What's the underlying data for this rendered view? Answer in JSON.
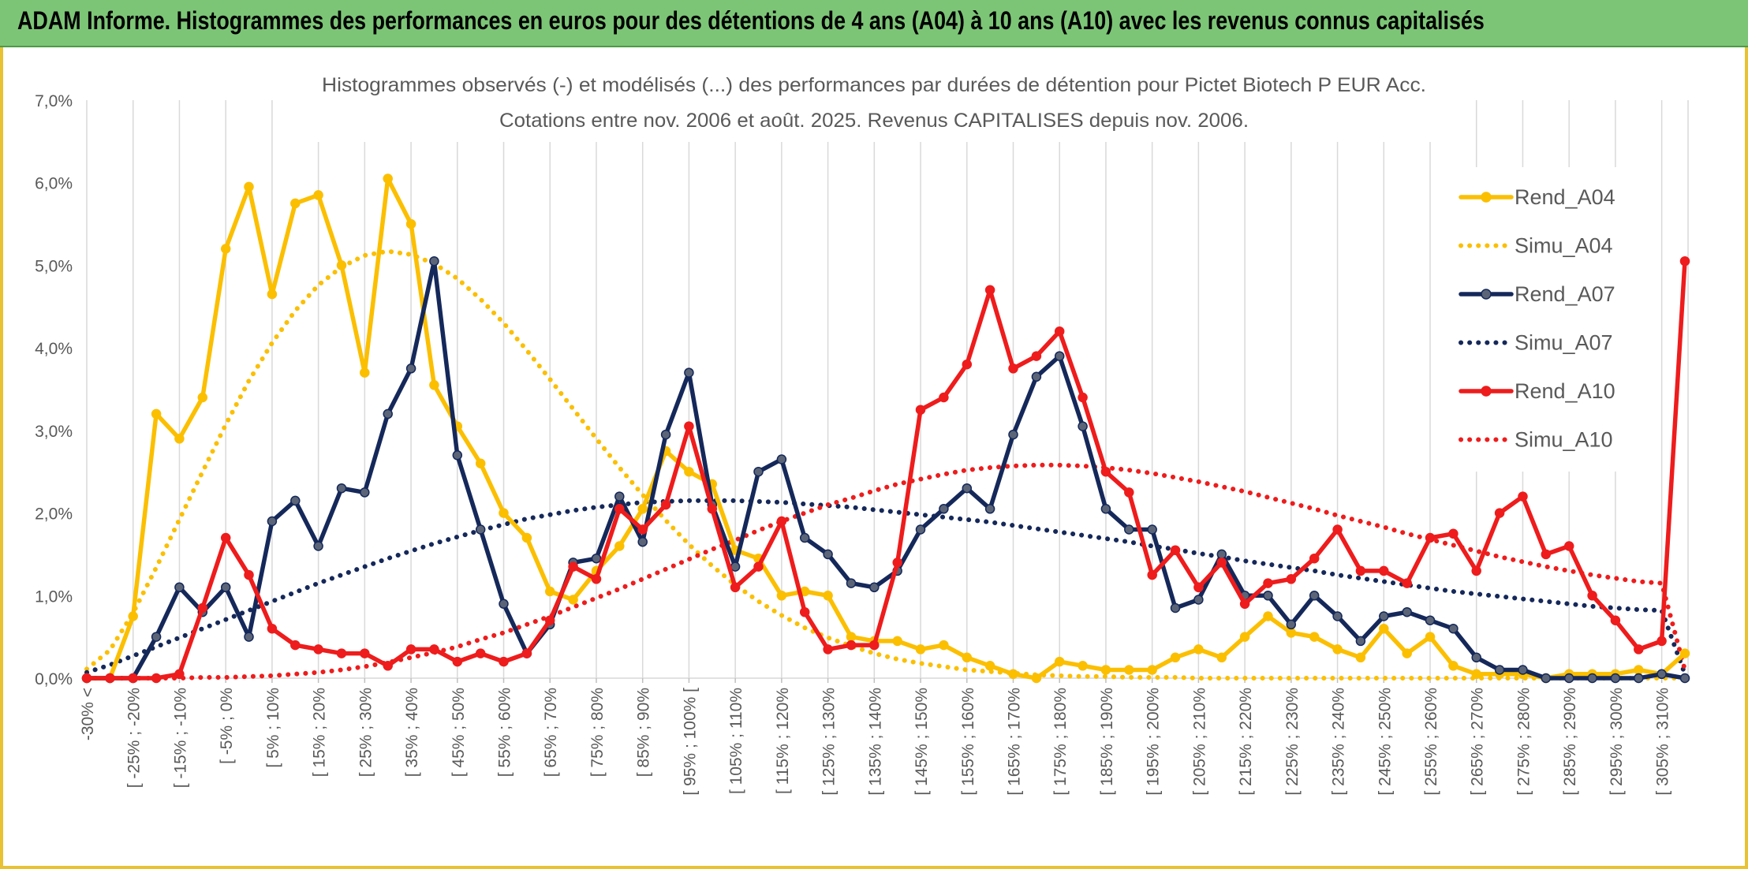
{
  "banner": {
    "title": "ADAM Informe. Histogrammes des performances en euros pour des détentions de 4 ans (A04) à 10 ans (A10) avec les revenus connus capitalisés"
  },
  "chart_data": {
    "type": "line",
    "title_line1": "Histogrammes observés (-) et modélisés (...) des performances par durées de détention pour Pictet Biotech P EUR Acc.",
    "title_line2": "Cotations entre nov. 2006 et août. 2025. Revenus CAPITALISES depuis nov. 2006.",
    "ylim": [
      0,
      7
    ],
    "yticks": [
      "0,0%",
      "1,0%",
      "2,0%",
      "3,0%",
      "4,0%",
      "5,0%",
      "6,0%",
      "7,0%"
    ],
    "grid": "vertical",
    "legend_position": "right",
    "xtick_labels": [
      "-30% <",
      "[ -25% ; -20%",
      "[ -15% ; -10%",
      "[ -5% ; 0%",
      "[ 5% ; 10%",
      "[ 15% ; 20%",
      "[ 25% ; 30%",
      "[ 35% ; 40%",
      "[ 45% ; 50%",
      "[ 55% ; 60%",
      "[ 65% ; 70%",
      "[ 75% ; 80%",
      "[ 85% ; 90%",
      "[ 95% ; 100% [",
      "[ 105% ; 110%",
      "[ 115% ; 120%",
      "[ 125% ; 130%",
      "[ 135% ; 140%",
      "[ 145% ; 150%",
      "[ 155% ; 160%",
      "[ 165% ; 170%",
      "[ 175% ; 180%",
      "[ 185% ; 190%",
      "[ 195% ; 200%",
      "[ 205% ; 210%",
      "[ 215% ; 220%",
      "[ 225% ; 230%",
      "[ 235% ; 240%",
      "[ 245% ; 250%",
      "[ 255% ; 260%",
      "[ 265% ; 270%",
      "[ 275% ; 280%",
      "[ 285% ; 290%",
      "[ 295% ; 300%",
      "[ 305% ; 310%"
    ],
    "n_bins": 70,
    "series": [
      {
        "name": "Rend_A04",
        "color": "#fbbf00",
        "style": "solid",
        "markers": true,
        "values": [
          0,
          0,
          0.75,
          3.2,
          2.9,
          3.4,
          5.2,
          5.95,
          4.65,
          5.75,
          5.85,
          5.0,
          3.7,
          6.05,
          5.5,
          3.55,
          3.05,
          2.6,
          2.0,
          1.7,
          1.05,
          0.95,
          1.3,
          1.6,
          2.05,
          2.75,
          2.5,
          2.35,
          1.55,
          1.45,
          1.0,
          1.05,
          1.0,
          0.5,
          0.45,
          0.45,
          0.35,
          0.4,
          0.25,
          0.15,
          0.05,
          0.0,
          0.2,
          0.15,
          0.1,
          0.1,
          0.1,
          0.25,
          0.35,
          0.25,
          0.5,
          0.75,
          0.55,
          0.5,
          0.35,
          0.25,
          0.6,
          0.3,
          0.5,
          0.15,
          0.05,
          0.05,
          0.05,
          0.0,
          0.05,
          0.05,
          0.05,
          0.1,
          0.05,
          0.3
        ]
      },
      {
        "name": "Simu_A04",
        "color": "#fbbf00",
        "style": "dotted",
        "markers": false,
        "values": [
          0.11,
          0.34,
          0.79,
          1.34,
          1.92,
          2.5,
          3.07,
          3.6,
          4.06,
          4.45,
          4.76,
          4.98,
          5.12,
          5.17,
          5.13,
          5.02,
          4.84,
          4.59,
          4.3,
          3.97,
          3.62,
          3.26,
          2.9,
          2.55,
          2.22,
          1.91,
          1.62,
          1.36,
          1.13,
          0.93,
          0.76,
          0.61,
          0.49,
          0.39,
          0.3,
          0.23,
          0.18,
          0.14,
          0.1,
          0.08,
          0.06,
          0.04,
          0.03,
          0.02,
          0.02,
          0.01,
          0.01,
          0.01,
          0.0,
          0.0,
          0.0,
          0.0,
          0.0,
          0.0,
          0.0,
          0.0,
          0.0,
          0.0,
          0.0,
          0.0,
          0.0,
          0.0,
          0.0,
          0.0,
          0.0,
          0.0,
          0.0,
          0.0,
          0.0,
          0.0
        ]
      },
      {
        "name": "Rend_A07",
        "color": "#15285a",
        "style": "solid",
        "markers": true,
        "values": [
          0,
          0,
          0,
          0.5,
          1.1,
          0.8,
          1.1,
          0.5,
          1.9,
          2.15,
          1.6,
          2.3,
          2.25,
          3.2,
          3.75,
          5.05,
          2.7,
          1.8,
          0.9,
          0.3,
          0.65,
          1.4,
          1.45,
          2.2,
          1.65,
          2.95,
          3.7,
          2.1,
          1.35,
          2.5,
          2.65,
          1.7,
          1.5,
          1.15,
          1.1,
          1.3,
          1.8,
          2.05,
          2.3,
          2.05,
          2.95,
          3.65,
          3.9,
          3.05,
          2.05,
          1.8,
          1.8,
          0.85,
          0.95,
          1.5,
          1.0,
          1.0,
          0.65,
          1.0,
          0.75,
          0.45,
          0.75,
          0.8,
          0.7,
          0.6,
          0.25,
          0.1,
          0.1,
          0.0,
          0.0,
          0.0,
          0.0,
          0.0,
          0.05,
          0.0
        ]
      },
      {
        "name": "Simu_A07",
        "color": "#15285a",
        "style": "dotted",
        "markers": false,
        "values": [
          0.07,
          0.16,
          0.27,
          0.38,
          0.49,
          0.6,
          0.71,
          0.82,
          0.93,
          1.04,
          1.15,
          1.25,
          1.35,
          1.45,
          1.54,
          1.63,
          1.71,
          1.79,
          1.86,
          1.93,
          1.98,
          2.03,
          2.07,
          2.1,
          2.13,
          2.14,
          2.15,
          2.15,
          2.15,
          2.14,
          2.13,
          2.11,
          2.09,
          2.07,
          2.04,
          2.01,
          1.98,
          1.95,
          1.92,
          1.89,
          1.85,
          1.81,
          1.77,
          1.73,
          1.69,
          1.65,
          1.6,
          1.56,
          1.51,
          1.47,
          1.42,
          1.38,
          1.34,
          1.3,
          1.25,
          1.21,
          1.17,
          1.13,
          1.09,
          1.05,
          1.02,
          0.99,
          0.96,
          0.93,
          0.9,
          0.87,
          0.85,
          0.83,
          0.82,
          0.05
        ]
      },
      {
        "name": "Rend_A10",
        "color": "#ee1c1c",
        "style": "solid",
        "markers": true,
        "values": [
          0,
          0,
          0,
          0,
          0.05,
          0.85,
          1.7,
          1.25,
          0.6,
          0.4,
          0.35,
          0.3,
          0.3,
          0.15,
          0.35,
          0.35,
          0.2,
          0.3,
          0.2,
          0.3,
          0.7,
          1.35,
          1.2,
          2.05,
          1.8,
          2.1,
          3.05,
          2.05,
          1.1,
          1.35,
          1.9,
          0.8,
          0.35,
          0.4,
          0.4,
          1.4,
          3.25,
          3.4,
          3.8,
          4.7,
          3.75,
          3.9,
          4.2,
          3.4,
          2.5,
          2.25,
          1.25,
          1.55,
          1.1,
          1.4,
          0.9,
          1.15,
          1.2,
          1.45,
          1.8,
          1.3,
          1.3,
          1.15,
          1.7,
          1.75,
          1.3,
          2.0,
          2.2,
          1.5,
          1.6,
          1.0,
          0.7,
          0.35,
          0.45,
          5.05
        ]
      },
      {
        "name": "Simu_A10",
        "color": "#ee1c1c",
        "style": "dotted",
        "markers": false,
        "values": [
          0.0,
          0.0,
          0.0,
          0.0,
          0.0,
          0.01,
          0.01,
          0.02,
          0.03,
          0.05,
          0.07,
          0.1,
          0.14,
          0.19,
          0.25,
          0.31,
          0.38,
          0.47,
          0.55,
          0.65,
          0.75,
          0.86,
          0.97,
          1.08,
          1.2,
          1.32,
          1.44,
          1.56,
          1.67,
          1.79,
          1.9,
          2.0,
          2.1,
          2.18,
          2.27,
          2.35,
          2.41,
          2.47,
          2.52,
          2.55,
          2.57,
          2.58,
          2.58,
          2.57,
          2.55,
          2.52,
          2.48,
          2.43,
          2.38,
          2.32,
          2.26,
          2.19,
          2.12,
          2.05,
          1.97,
          1.9,
          1.83,
          1.75,
          1.68,
          1.61,
          1.54,
          1.47,
          1.41,
          1.35,
          1.3,
          1.25,
          1.21,
          1.17,
          1.15,
          0.1
        ]
      }
    ]
  }
}
